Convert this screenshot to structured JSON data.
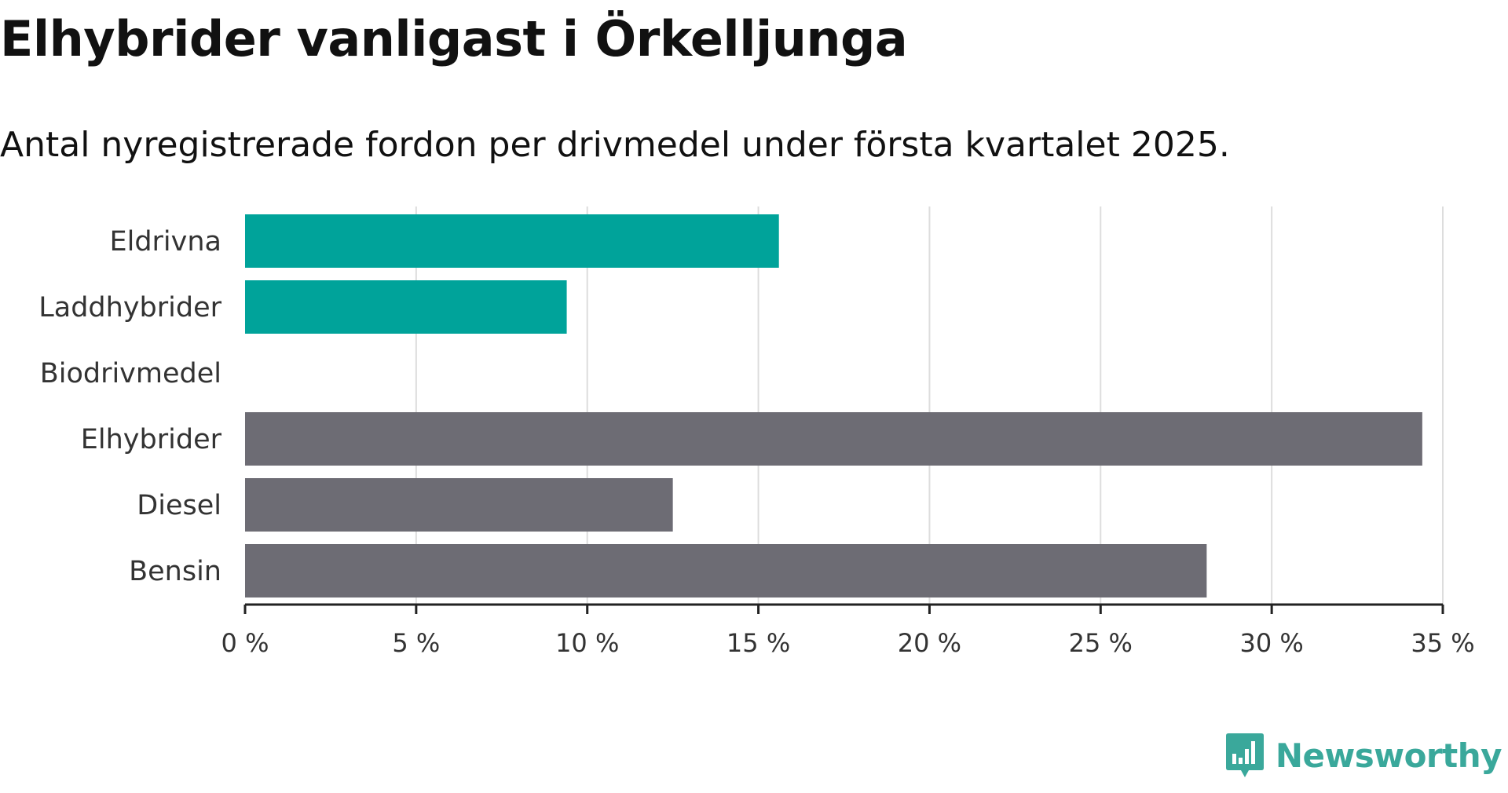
{
  "header": {
    "title": "Elhybrider vanligast i Örkelljunga",
    "subtitle": "Antal nyregistrerade fordon per drivmedel under första kvartalet 2025."
  },
  "brand": {
    "name": "Newsworthy",
    "icon": "chart-speech-bubble-icon",
    "color": "#3aa89b"
  },
  "chart_data": {
    "type": "bar",
    "orientation": "horizontal",
    "categories": [
      "Eldrivna",
      "Laddhybrider",
      "Biodrivmedel",
      "Elhybrider",
      "Diesel",
      "Bensin"
    ],
    "values": [
      15.6,
      9.4,
      0,
      34.4,
      12.5,
      28.1
    ],
    "colors": [
      "#00a39a",
      "#00a39a",
      "#00a39a",
      "#6d6c74",
      "#6d6c74",
      "#6d6c74"
    ],
    "x_ticks": [
      "0 %",
      "5 %",
      "10 %",
      "15 %",
      "20 %",
      "25 %",
      "30 %",
      "35 %"
    ],
    "tick_values": [
      0,
      5,
      10,
      15,
      20,
      25,
      30,
      35
    ],
    "xlim": [
      0,
      35
    ],
    "xlabel": "",
    "ylabel": "",
    "grid": true,
    "legend": "none"
  }
}
